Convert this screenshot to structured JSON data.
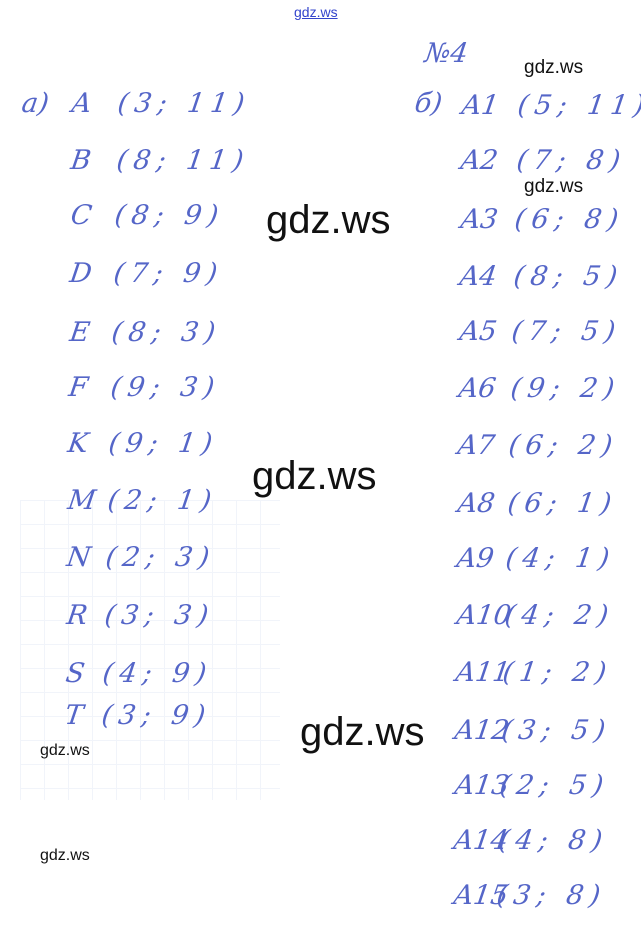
{
  "watermarks": {
    "top": "gdz.ws",
    "items": [
      "gdz.ws",
      "gdz.ws",
      "gdz.ws",
      "gdz.ws",
      "gdz.ws",
      "gdz.ws",
      "gdz.ws"
    ]
  },
  "task_number": "№4",
  "part_a": {
    "label": "а)",
    "points": [
      {
        "name": "A",
        "coords": "(3; 11)"
      },
      {
        "name": "B",
        "coords": "(8; 11)"
      },
      {
        "name": "C",
        "coords": "(8; 9)"
      },
      {
        "name": "D",
        "coords": "(7; 9)"
      },
      {
        "name": "E",
        "coords": "(8; 3)"
      },
      {
        "name": "F",
        "coords": "(9; 3)"
      },
      {
        "name": "K",
        "coords": "(9; 1)"
      },
      {
        "name": "M",
        "coords": "(2; 1)"
      },
      {
        "name": "N",
        "coords": "(2; 3)"
      },
      {
        "name": "R",
        "coords": "(3; 3)"
      },
      {
        "name": "S",
        "coords": "(4; 9)"
      },
      {
        "name": "T",
        "coords": "(3; 9)"
      }
    ]
  },
  "part_b": {
    "label": "б)",
    "points": [
      {
        "name": "A1",
        "coords": "(5; 11)"
      },
      {
        "name": "A2",
        "coords": "(7; 8)"
      },
      {
        "name": "A3",
        "coords": "(6; 8)"
      },
      {
        "name": "A4",
        "coords": "(8; 5)"
      },
      {
        "name": "A5",
        "coords": "(7; 5)"
      },
      {
        "name": "A6",
        "coords": "(9; 2)"
      },
      {
        "name": "A7",
        "coords": "(6; 2)"
      },
      {
        "name": "A8",
        "coords": "(6; 1)"
      },
      {
        "name": "A9",
        "coords": "(4; 1)"
      },
      {
        "name": "A10",
        "coords": "(4; 2)"
      },
      {
        "name": "A11",
        "coords": "(1; 2)"
      },
      {
        "name": "A12",
        "coords": "(3; 5)"
      },
      {
        "name": "A13",
        "coords": "(2; 5)"
      },
      {
        "name": "A14",
        "coords": "(4; 8)"
      },
      {
        "name": "A15",
        "coords": "(3; 8)"
      }
    ]
  }
}
